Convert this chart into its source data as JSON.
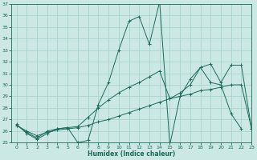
{
  "xlabel": "Humidex (Indice chaleur)",
  "bg_color": "#cce8e4",
  "grid_color": "#a8d4cf",
  "line_color": "#1a6b5a",
  "xlim": [
    -0.5,
    23
  ],
  "ylim": [
    25,
    37
  ],
  "yticks": [
    25,
    26,
    27,
    28,
    29,
    30,
    31,
    32,
    33,
    34,
    35,
    36,
    37
  ],
  "xticks": [
    0,
    1,
    2,
    3,
    4,
    5,
    6,
    7,
    8,
    9,
    10,
    11,
    12,
    13,
    14,
    15,
    16,
    17,
    18,
    19,
    20,
    21,
    22,
    23
  ],
  "line1_x": [
    0,
    1,
    2,
    3,
    4,
    5,
    6,
    7,
    8,
    9,
    10,
    11,
    12,
    13,
    14,
    15,
    16,
    17,
    18,
    19,
    20,
    21,
    22
  ],
  "line1_y": [
    26.6,
    25.8,
    25.3,
    25.8,
    26.2,
    26.3,
    25.0,
    25.2,
    28.3,
    30.2,
    33.0,
    35.5,
    35.9,
    33.5,
    37.2,
    24.8,
    29.0,
    30.5,
    31.5,
    30.2,
    30.0,
    27.5,
    26.2
  ],
  "line2_x": [
    0,
    1,
    2,
    3,
    4,
    5,
    6,
    7,
    8,
    9,
    10,
    11,
    12,
    13,
    14,
    15,
    16,
    17,
    18,
    19,
    20,
    21,
    22,
    23
  ],
  "line2_y": [
    26.5,
    25.9,
    25.4,
    26.0,
    26.2,
    26.3,
    26.4,
    27.2,
    28.0,
    28.7,
    29.3,
    29.8,
    30.2,
    30.7,
    31.2,
    28.8,
    29.3,
    30.0,
    31.5,
    31.8,
    30.2,
    31.7,
    31.7,
    26.2
  ],
  "line3_x": [
    0,
    1,
    2,
    3,
    4,
    5,
    6,
    7,
    8,
    9,
    10,
    11,
    12,
    13,
    14,
    15,
    16,
    17,
    18,
    19,
    20,
    21,
    22,
    23
  ],
  "line3_y": [
    26.5,
    26.0,
    25.6,
    25.9,
    26.1,
    26.2,
    26.3,
    26.5,
    26.8,
    27.0,
    27.3,
    27.6,
    27.9,
    28.2,
    28.5,
    28.8,
    29.0,
    29.2,
    29.5,
    29.6,
    29.8,
    30.0,
    30.0,
    26.2
  ]
}
